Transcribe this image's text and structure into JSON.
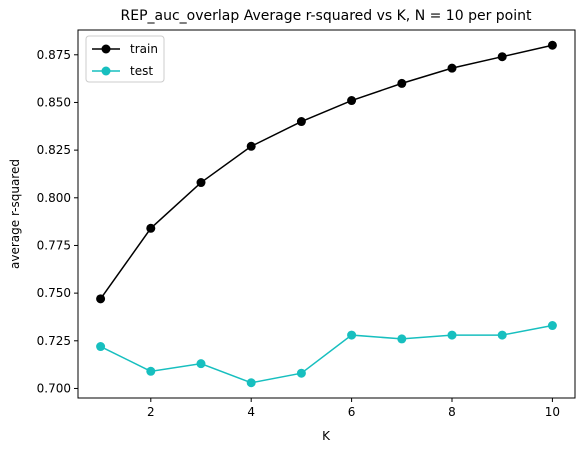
{
  "chart_data": {
    "type": "line",
    "title": "REP_auc_overlap Average r-squared vs K, N = 10 per point",
    "xlabel": "K",
    "ylabel": "average r-squared",
    "x": [
      1,
      2,
      3,
      4,
      5,
      6,
      7,
      8,
      9,
      10
    ],
    "xlim": [
      0.55,
      10.45
    ],
    "ylim": [
      0.695,
      0.888
    ],
    "xticks": [
      2,
      4,
      6,
      8,
      10
    ],
    "xtick_labels": [
      "2",
      "4",
      "6",
      "8",
      "10"
    ],
    "yticks": [
      0.7,
      0.725,
      0.75,
      0.775,
      0.8,
      0.825,
      0.85,
      0.875
    ],
    "ytick_labels": [
      "0.700",
      "0.725",
      "0.750",
      "0.775",
      "0.800",
      "0.825",
      "0.850",
      "0.875"
    ],
    "grid": false,
    "legend_position": "top-left",
    "series": [
      {
        "name": "train",
        "color": "#000000",
        "marker": "circle",
        "values": [
          0.747,
          0.784,
          0.808,
          0.827,
          0.84,
          0.851,
          0.86,
          0.868,
          0.874,
          0.88
        ]
      },
      {
        "name": "test",
        "color": "#17bfbf",
        "marker": "circle",
        "values": [
          0.722,
          0.709,
          0.713,
          0.703,
          0.708,
          0.728,
          0.726,
          0.728,
          0.728,
          0.733
        ]
      }
    ]
  }
}
